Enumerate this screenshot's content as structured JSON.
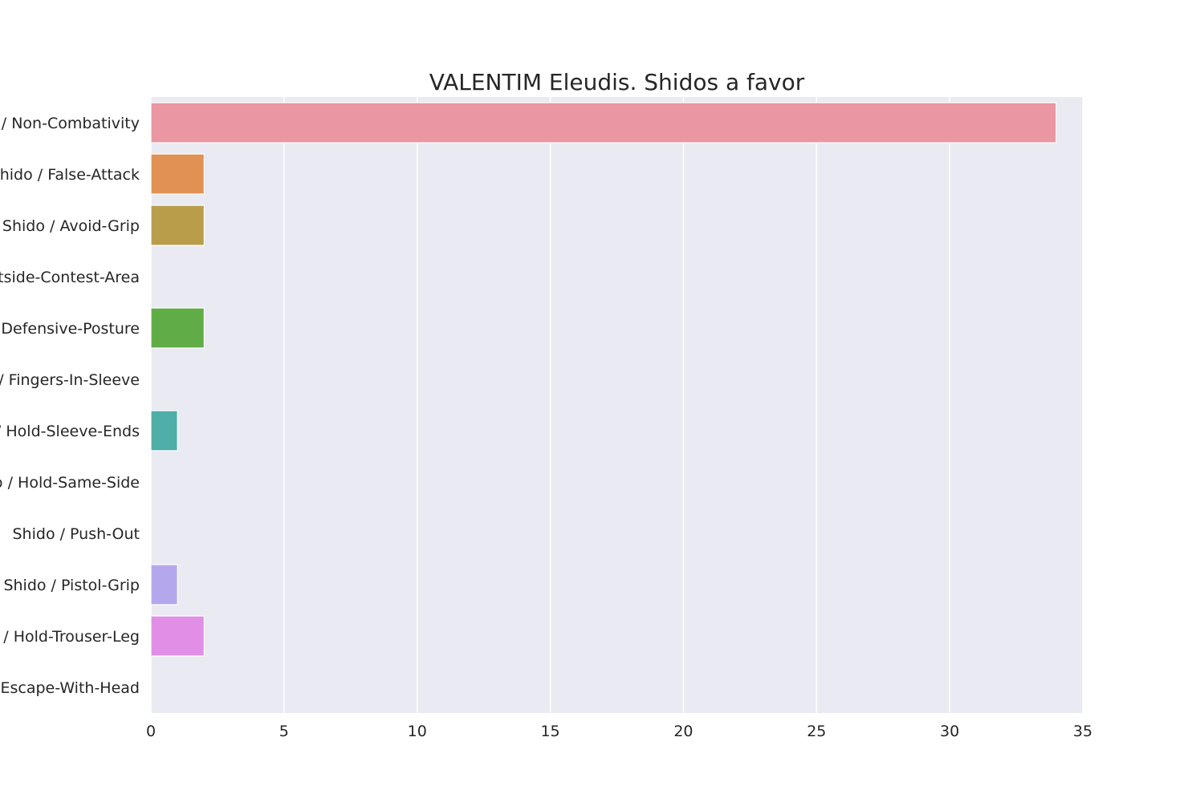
{
  "chart_data": {
    "type": "bar",
    "orientation": "horizontal",
    "title": "VALENTIM Eleudis. Shidos a favor",
    "xlabel": "",
    "ylabel": "",
    "xlim": [
      0,
      35
    ],
    "xticks": [
      "0",
      "5",
      "10",
      "15",
      "20",
      "25",
      "30",
      "35"
    ],
    "grid": true,
    "categories": [
      "Shido / Non-Combativity",
      "Shido / False-Attack",
      "Shido / Avoid-Grip",
      "Shido / Outside-Contest-Area",
      "Shido / Defensive-Posture",
      "Shido / Fingers-In-Sleeve",
      "Shido / Hold-Sleeve-Ends",
      "Shido / Hold-Same-Side",
      "Shido / Push-Out",
      "Shido / Pistol-Grip",
      "Shido / Hold-Trouser-Leg",
      "Shido / Escape-With-Head"
    ],
    "values": [
      34,
      2,
      2,
      0,
      2,
      0,
      1,
      0,
      0,
      1,
      2,
      0
    ],
    "colors": [
      "#ea96a3",
      "#e19153",
      "#b99d4b",
      "#94a94b",
      "#60ad47",
      "#4fae89",
      "#4faea8",
      "#50aac8",
      "#72a5e5",
      "#b5a7ec",
      "#e18ee6",
      "#ea90c7"
    ],
    "background": "#eaeaf2",
    "gridline_color": "#ffffff"
  }
}
